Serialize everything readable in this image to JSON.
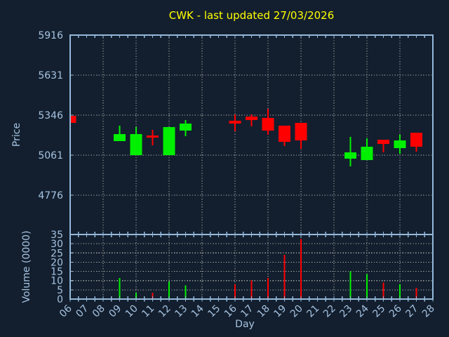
{
  "title": "CWK - last updated 27/03/2026",
  "colors": {
    "background": "#131f2e",
    "axis": "#95b8da",
    "text": "#a6c3e2",
    "grid": "#a8a8a8",
    "title": "#ffff00",
    "up": "#00f000",
    "down": "#ff0000"
  },
  "chart_data": {
    "type": "candlestick_with_volume",
    "title": "CWK - last updated 27/03/2026",
    "xlabel": "Day",
    "xlim": [
      6,
      28
    ],
    "x_tick_labels": [
      "06",
      "07",
      "08",
      "09",
      "10",
      "11",
      "12",
      "13",
      "14",
      "15",
      "16",
      "17",
      "18",
      "19",
      "20",
      "21",
      "22",
      "23",
      "24",
      "25",
      "26",
      "27",
      "28"
    ],
    "x_grid_step_days": 2,
    "grid": true,
    "legend": false,
    "price_panel": {
      "ylabel": "Price",
      "ylim": [
        4496,
        5916
      ],
      "yticks": [
        4776,
        5061,
        5346,
        5631,
        5916
      ]
    },
    "volume_panel": {
      "ylabel": "Volume (0000)",
      "ylim": [
        0,
        35
      ],
      "yticks": [
        0,
        5,
        10,
        15,
        20,
        25,
        30,
        35
      ]
    },
    "series": [
      {
        "day": 6,
        "open": 5340,
        "high": 5340,
        "low": 5290,
        "close": 5290,
        "volume": 0
      },
      {
        "day": 9,
        "open": 5160,
        "high": 5270,
        "low": 5160,
        "close": 5210,
        "volume": 11.5
      },
      {
        "day": 10,
        "open": 5060,
        "high": 5260,
        "low": 5060,
        "close": 5210,
        "volume": 3.5
      },
      {
        "day": 11,
        "open": 5200,
        "high": 5240,
        "low": 5130,
        "close": 5185,
        "volume": 3.5
      },
      {
        "day": 12,
        "open": 5060,
        "high": 5260,
        "low": 5060,
        "close": 5260,
        "volume": 9.5
      },
      {
        "day": 13,
        "open": 5235,
        "high": 5310,
        "low": 5195,
        "close": 5285,
        "volume": 7.5
      },
      {
        "day": 16,
        "open": 5305,
        "high": 5350,
        "low": 5230,
        "close": 5285,
        "volume": 8
      },
      {
        "day": 17,
        "open": 5335,
        "high": 5350,
        "low": 5265,
        "close": 5310,
        "volume": 10
      },
      {
        "day": 18,
        "open": 5325,
        "high": 5390,
        "low": 5205,
        "close": 5235,
        "volume": 11.5
      },
      {
        "day": 19,
        "open": 5270,
        "high": 5270,
        "low": 5125,
        "close": 5155,
        "volume": 24
      },
      {
        "day": 20,
        "open": 5290,
        "high": 5290,
        "low": 5105,
        "close": 5165,
        "volume": 32.5
      },
      {
        "day": 23,
        "open": 5035,
        "high": 5190,
        "low": 4980,
        "close": 5080,
        "volume": 15
      },
      {
        "day": 24,
        "open": 5025,
        "high": 5180,
        "low": 5025,
        "close": 5120,
        "volume": 13.5
      },
      {
        "day": 25,
        "open": 5170,
        "high": 5170,
        "low": 5080,
        "close": 5140,
        "volume": 9
      },
      {
        "day": 26,
        "open": 5110,
        "high": 5205,
        "low": 5070,
        "close": 5165,
        "volume": 8
      },
      {
        "day": 27,
        "open": 5220,
        "high": 5220,
        "low": 5085,
        "close": 5120,
        "volume": 6
      }
    ]
  }
}
